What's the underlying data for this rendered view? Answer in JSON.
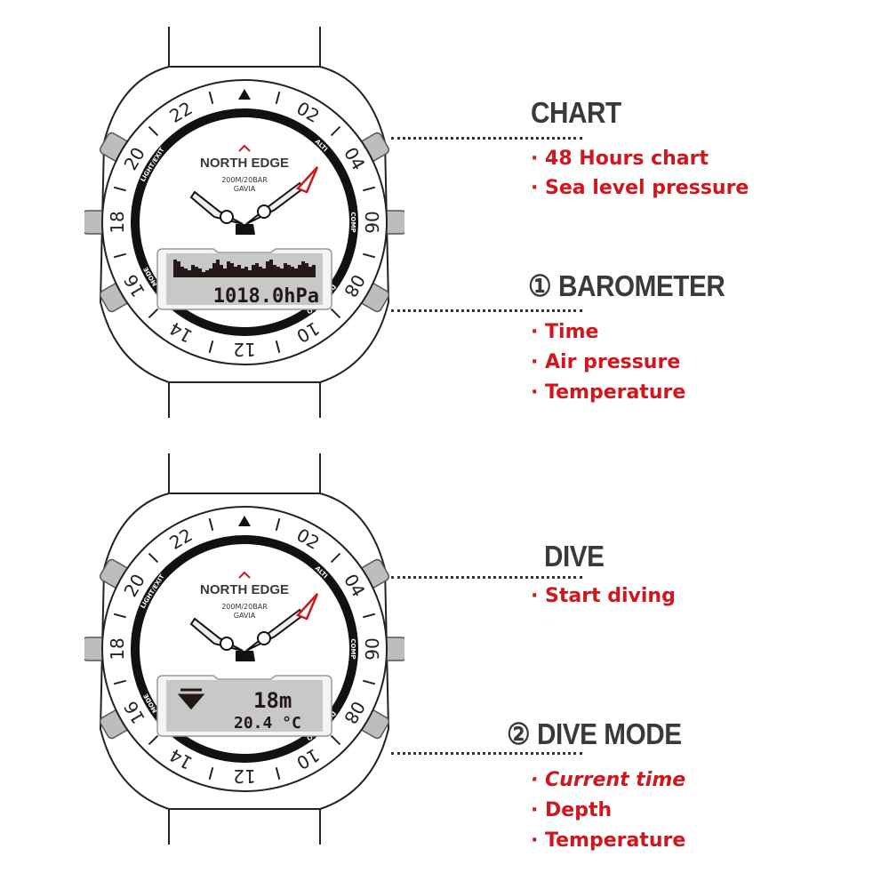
{
  "colors": {
    "accent_red": "#d2161e",
    "heading": "#3a3a3a",
    "lcd_bg": "#c8c8c8",
    "lcd_ink": "#231815"
  },
  "watch_common": {
    "brand": "NORTH EDGE",
    "depth_rating": "200M/20BAR",
    "model": "GAVIA",
    "bezel_numbers": [
      "02",
      "04",
      "06",
      "08",
      "10",
      "12",
      "14",
      "16",
      "18",
      "20",
      "22"
    ],
    "button_labels": {
      "top_left": "LIGHT/EXIT",
      "top_right": "ALTI",
      "right": "COMP",
      "bottom_right": "DIVE/BARO",
      "bottom_left": "MODE"
    }
  },
  "watches": [
    {
      "mode": "barometer",
      "lcd_value": "1018.0hPa"
    },
    {
      "mode": "dive",
      "lcd_icon": "dive-down-arrow-icon",
      "depth": "18m",
      "temperature": "20.4 °C"
    }
  ],
  "sections": [
    {
      "heading": "CHART",
      "items": [
        "· 48 Hours chart",
        "· Sea level pressure"
      ]
    },
    {
      "heading": "① BAROMETER",
      "items": [
        "· Time",
        "· Air pressure",
        "· Temperature"
      ]
    },
    {
      "heading": "DIVE",
      "items": [
        "· Start diving"
      ]
    },
    {
      "heading": "② DIVE MODE",
      "items": [
        "· Current time",
        "· Depth",
        "· Temperature"
      ]
    }
  ]
}
